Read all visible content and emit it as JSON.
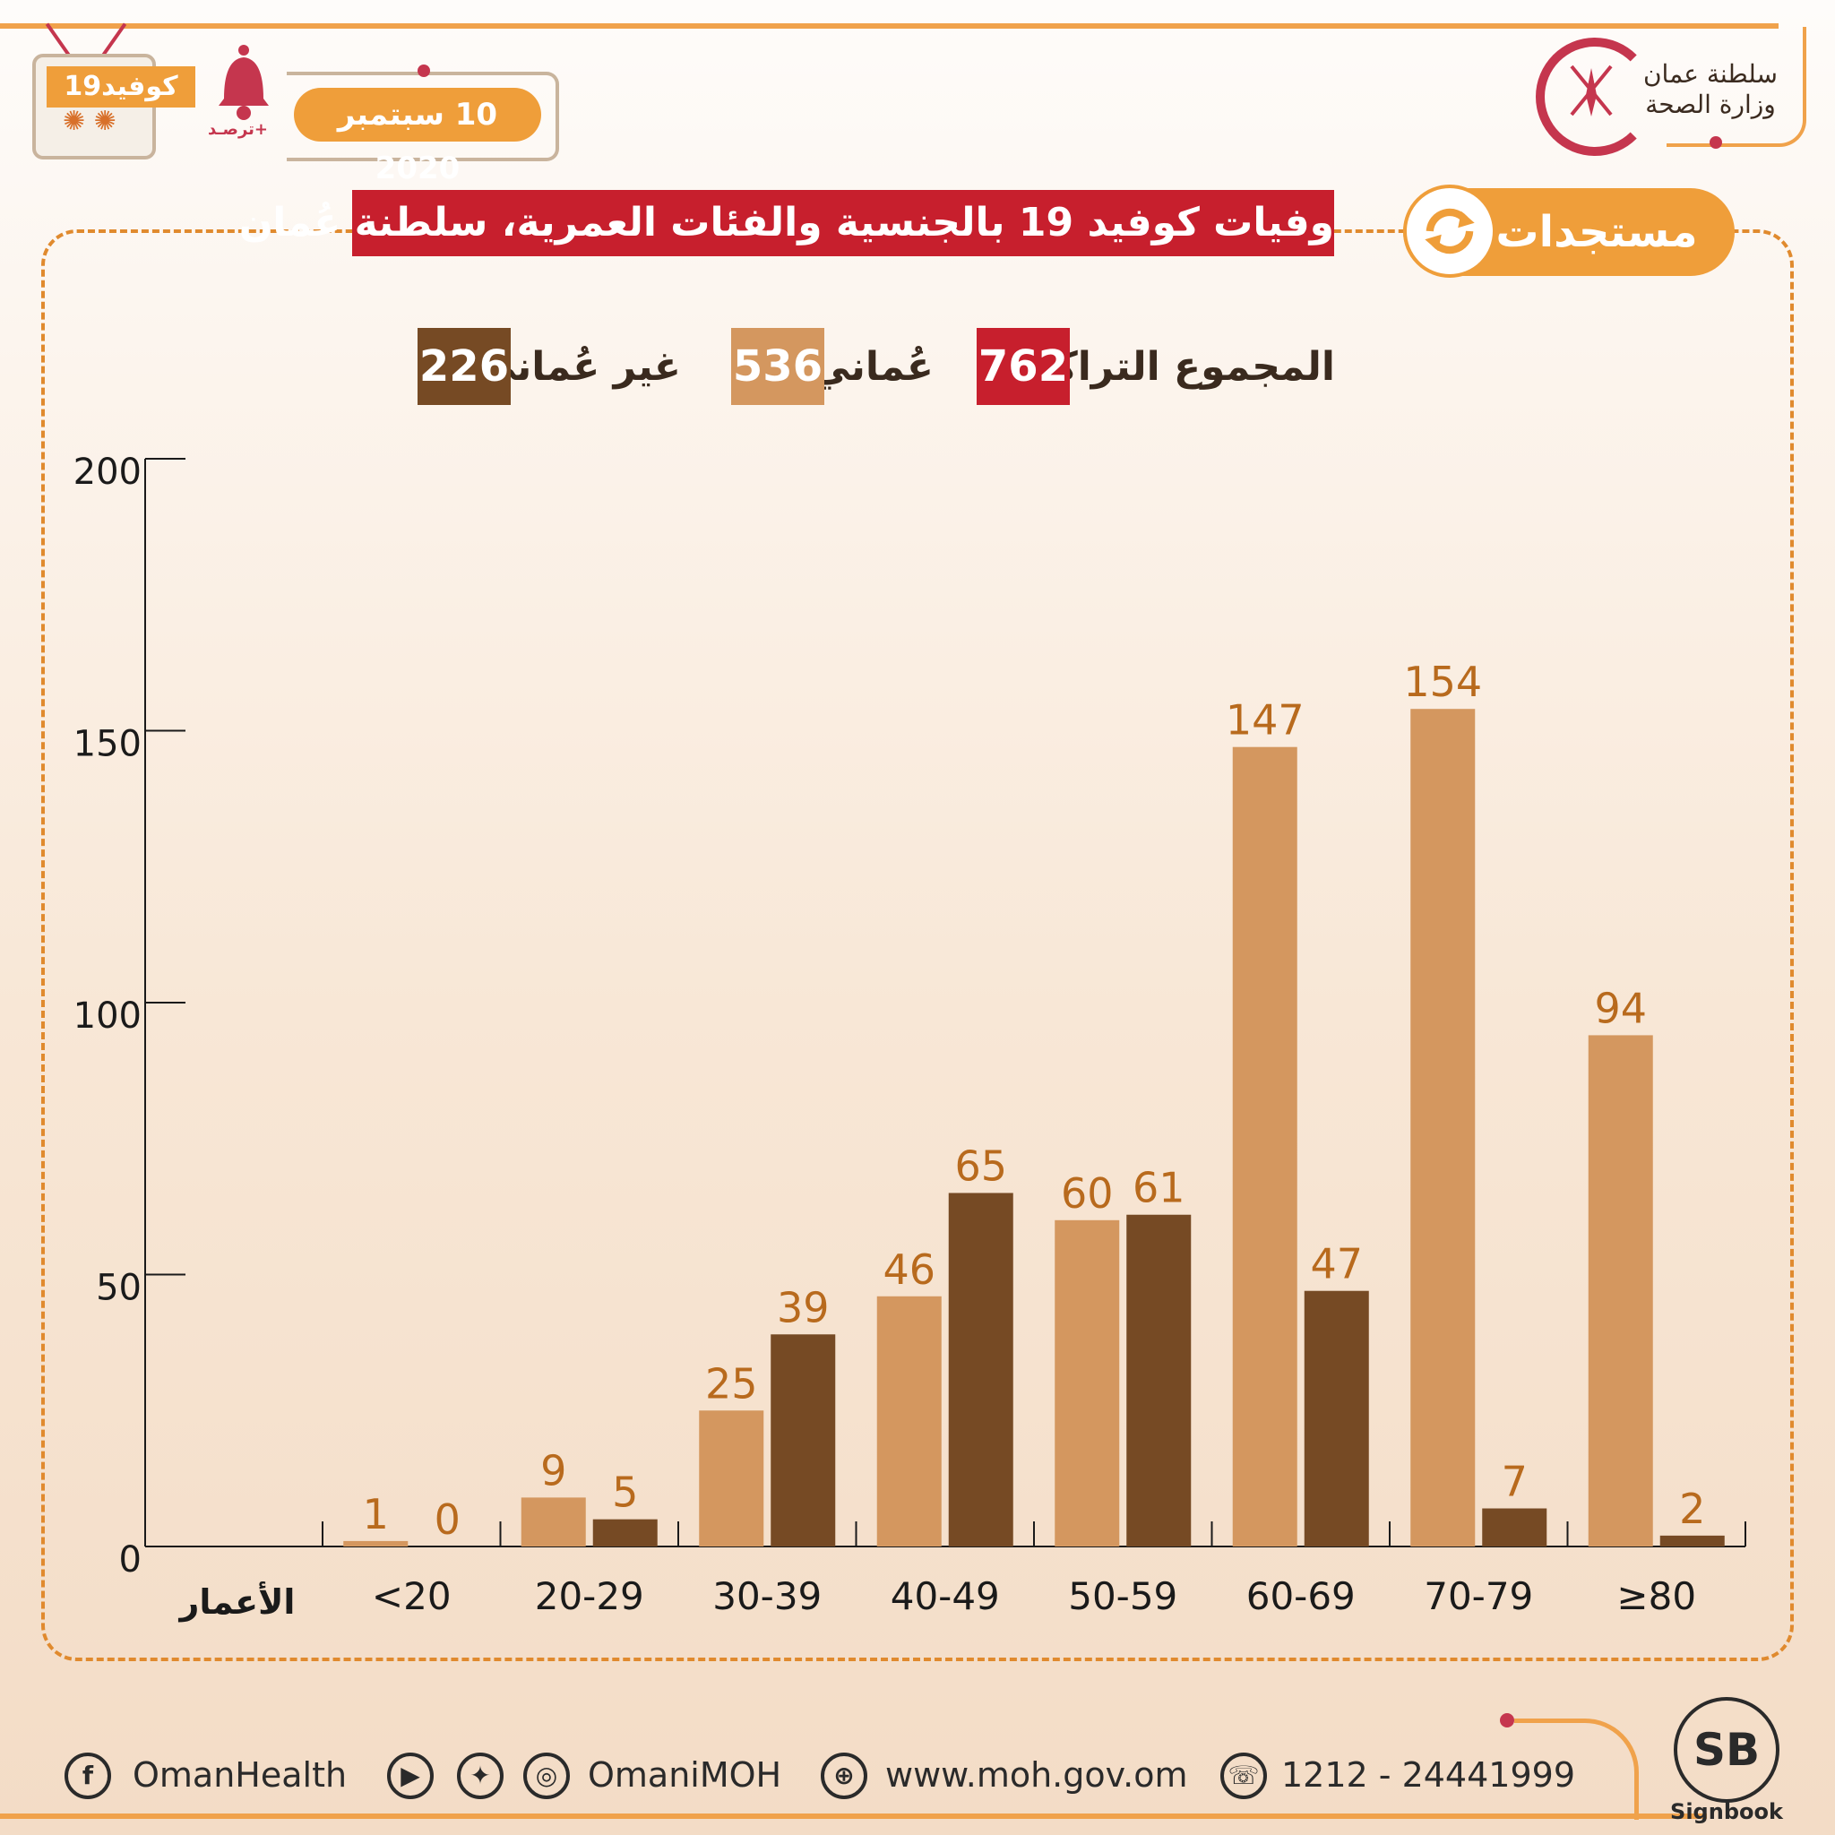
{
  "header": {
    "covid_label": "كوفيد19",
    "tarassud_label": "ترصـد+",
    "date": "10 سبتمبر 2020",
    "ministry_line1": "سلطنة عمان",
    "ministry_line2": "وزارة الصحة",
    "updates_label": "مستجدات"
  },
  "legend": {
    "total_label": "المجموع التراكمي",
    "total_value": "762",
    "omani_label": "عُماني",
    "omani_value": "536",
    "non_omani_label": "غير عُماني",
    "non_omani_value": "226"
  },
  "colors": {
    "omani": "#d4975f",
    "non_omani": "#764a24",
    "total": "#c71f2d",
    "accent": "#ef9e3a",
    "value_label": "#b86a1d"
  },
  "chart_data": {
    "type": "bar",
    "title": "وفيات كوفيد 19 بالجنسية والفئات العمرية، سلطنة عُمان",
    "xlabel": "الأعمار",
    "ylabel": "",
    "categories": [
      "<20",
      "20-29",
      "30-39",
      "40-49",
      "50-59",
      "60-69",
      "70-79",
      "≥80"
    ],
    "series": [
      {
        "name": "عُماني",
        "values": [
          1,
          9,
          25,
          46,
          60,
          147,
          154,
          94
        ]
      },
      {
        "name": "غير عُماني",
        "values": [
          0,
          5,
          39,
          65,
          61,
          47,
          7,
          2
        ]
      }
    ],
    "ylim": [
      0,
      200
    ],
    "yticks": [
      0,
      50,
      100,
      150,
      200
    ],
    "grid": false,
    "legend_position": "top"
  },
  "footer": {
    "facebook_icon": "facebook-icon",
    "facebook_handle": "OmanHealth",
    "social_handle": "OmaniMOH",
    "website": "www.moh.gov.om",
    "phone": "1212 - 24441999",
    "brand": "Signbook",
    "brand_mark": "SB"
  }
}
